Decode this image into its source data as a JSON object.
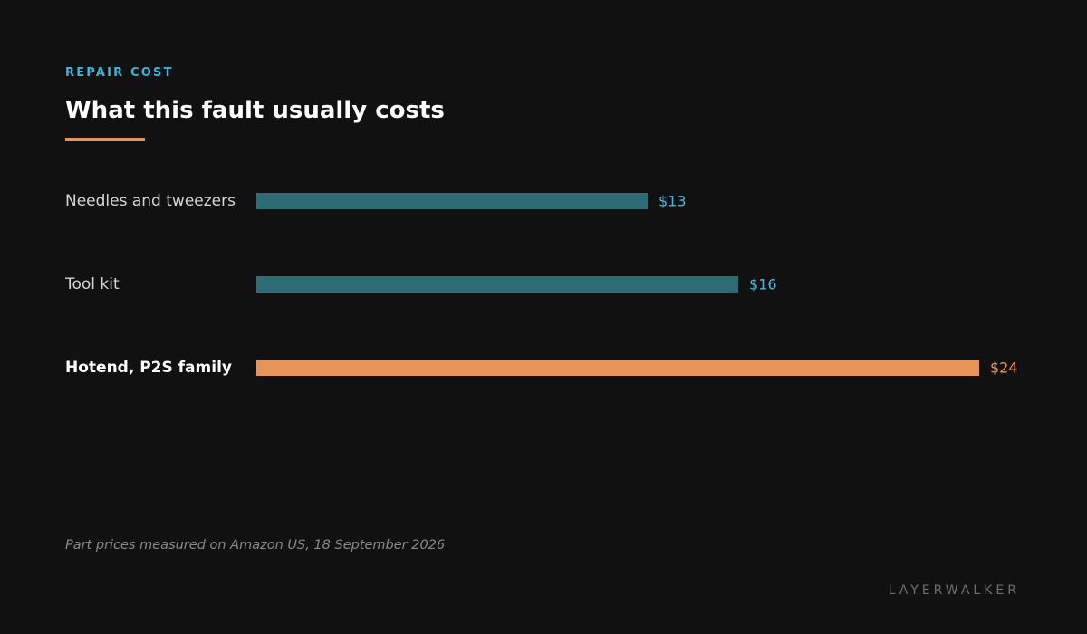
{
  "header": {
    "kicker": "REPAIR COST",
    "title": "What this fault usually costs"
  },
  "colors": {
    "background": "#111111",
    "kicker": "#3bb4d8",
    "accent": "#e8935a",
    "bar_default": "#2e6b74",
    "value_default": "#4bb6db",
    "label_default": "#d6d6d6",
    "label_highlight": "#ffffff"
  },
  "chart_data": {
    "type": "bar",
    "orientation": "horizontal",
    "categories": [
      "Needles and tweezers",
      "Tool kit",
      "Hotend, P2S family"
    ],
    "values": [
      13,
      16,
      24
    ],
    "value_labels": [
      "$13",
      "$16",
      "$24"
    ],
    "highlight": "Hotend, P2S family",
    "xlim": [
      0,
      24
    ],
    "grid": false,
    "legend": "none"
  },
  "footer": {
    "note": "Part prices measured on Amazon US, 18 September 2026",
    "brand": "LAYERWALKER"
  }
}
